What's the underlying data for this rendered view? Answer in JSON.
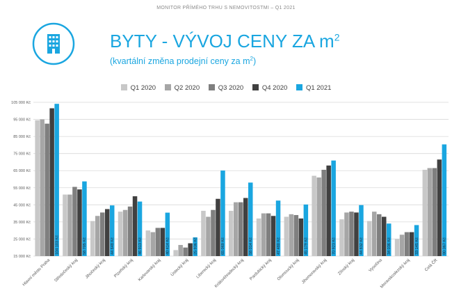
{
  "header": {
    "report_title": "MONITOR PŘÍMÉHO TRHU S NEMOVITOSTMI – Q1 2021",
    "title_main": "BYTY - VÝVOJ CENY ZA m",
    "title_sup": "2",
    "subtitle_main": "(kvartální změna prodejní ceny za m",
    "subtitle_sup": "2",
    "subtitle_end": ")",
    "icon": "apartment-building-icon"
  },
  "colors": {
    "accent": "#1aa6e0",
    "series": [
      "#c8c8c8",
      "#a6a6a6",
      "#7f7f7f",
      "#404040",
      "#1aa6e0"
    ],
    "grid": "#d9d9d9",
    "axis_text": "#595959"
  },
  "chart_data": {
    "type": "bar",
    "categories": [
      "Hlavní město Praha",
      "Středočeský kraj",
      "Jihočeský kraj",
      "Plzeňský kraj",
      "Karlovarský kraj",
      "Ústecký kraj",
      "Liberecký kraj",
      "Královéhradecký kraj",
      "Pardubický kraj",
      "Olomoucký kraj",
      "Jihomoravský kraj",
      "Zlínský kraj",
      "Vysočina",
      "Moravskoslezský kraj",
      "Celá ČR"
    ],
    "series": [
      {
        "name": "Q1 2020",
        "values": [
          94500,
          51000,
          35500,
          41000,
          30000,
          18500,
          41500,
          41500,
          37000,
          38000,
          62000,
          36500,
          35500,
          25000,
          65500
        ]
      },
      {
        "name": "Q2 2020",
        "values": [
          95000,
          51000,
          38500,
          42000,
          29000,
          21500,
          38000,
          46500,
          40000,
          39500,
          61000,
          40500,
          41000,
          27500,
          66500
        ]
      },
      {
        "name": "Q3 2020",
        "values": [
          92500,
          55500,
          40500,
          44000,
          31500,
          20000,
          42000,
          46500,
          40000,
          39000,
          65500,
          41000,
          39500,
          29000,
          66500
        ]
      },
      {
        "name": "Q4 2020",
        "values": [
          101500,
          54000,
          42500,
          50000,
          31500,
          22500,
          48500,
          49000,
          38500,
          37000,
          68000,
          40500,
          38000,
          29000,
          71500
        ]
      },
      {
        "name": "Q1 2021",
        "values": [
          104103,
          58705,
          44648,
          46913,
          40414,
          25936,
          65069,
          58014,
          47480,
          45179,
          70923,
          44832,
          34036,
          33145,
          80367
        ]
      }
    ],
    "bar_labels": [
      "104 103 Kč",
      "58 705 Kč",
      "44 648 Kč",
      "46 913 Kč",
      "40 414 Kč",
      "25 936 Kč",
      "65 069 Kč",
      "58 014 Kč",
      "47 480 Kč",
      "45 179 Kč",
      "70 923 Kč",
      "44 832 Kč",
      "34 036 Kč",
      "33 145 Kč",
      "80 367 Kč"
    ],
    "y_ticks": [
      "15 000 Kč",
      "25 000 Kč",
      "35 000 Kč",
      "45 000 Kč",
      "55 000 Kč",
      "65 000 Kč",
      "75 000 Kč",
      "85 000 Kč",
      "95 000 Kč",
      "105 000 Kč"
    ],
    "ylim": [
      15000,
      105000
    ],
    "grid": true,
    "legend_position": "top"
  }
}
